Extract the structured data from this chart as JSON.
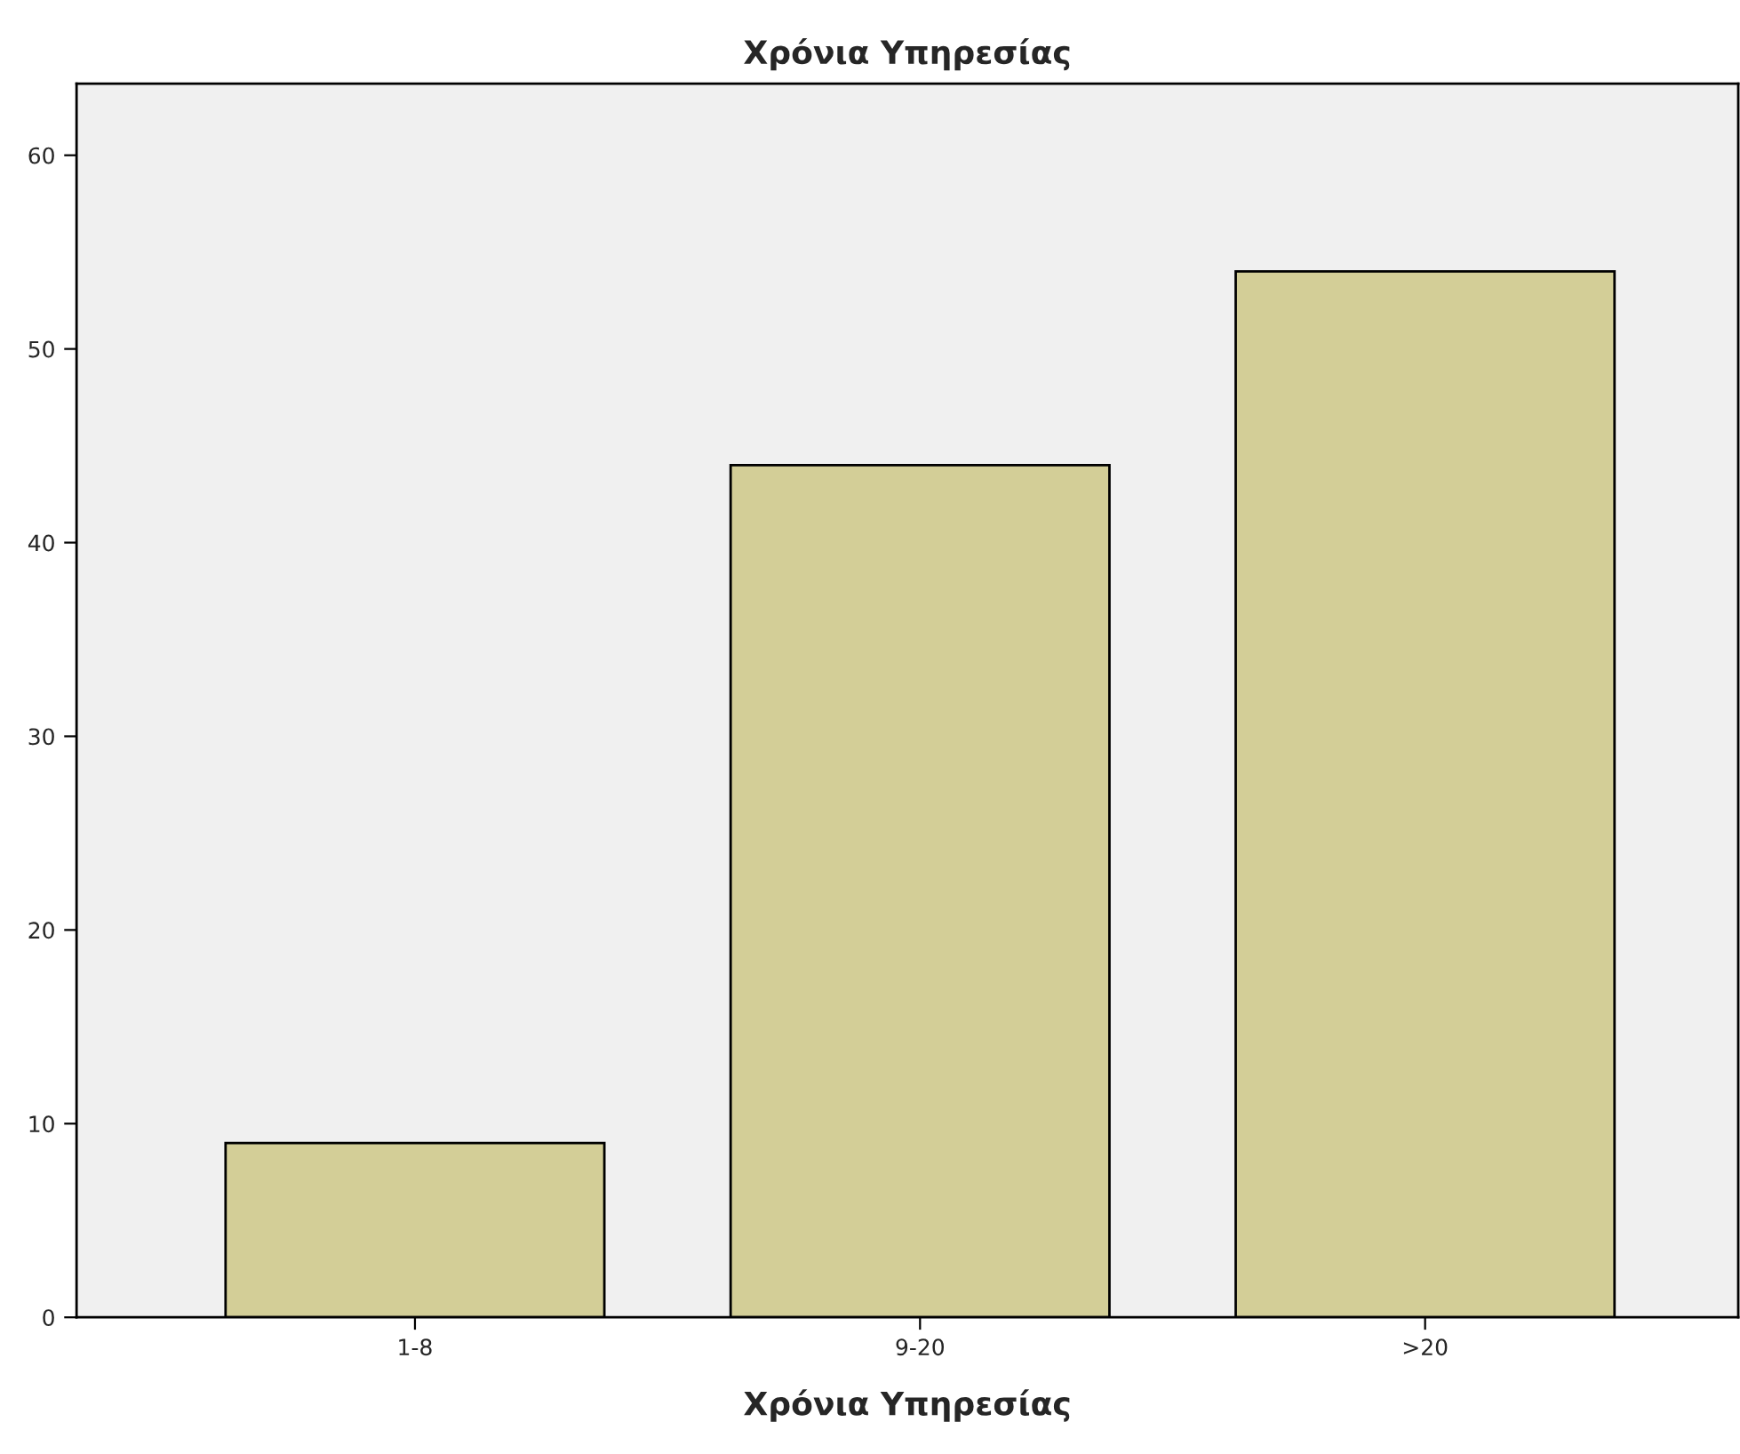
{
  "chart_data": {
    "type": "bar",
    "title": "Χρόνια Υπηρεσίας",
    "xlabel": "Χρόνια Υπηρεσίας",
    "categories": [
      "1-8",
      "9-20",
      ">20"
    ],
    "values": [
      9,
      44,
      54
    ],
    "color": "#d3ce97",
    "ylim": [
      0,
      63.7
    ],
    "yticks": [
      0,
      10,
      20,
      30,
      40,
      50,
      60
    ],
    "grid": false,
    "legend": false
  }
}
